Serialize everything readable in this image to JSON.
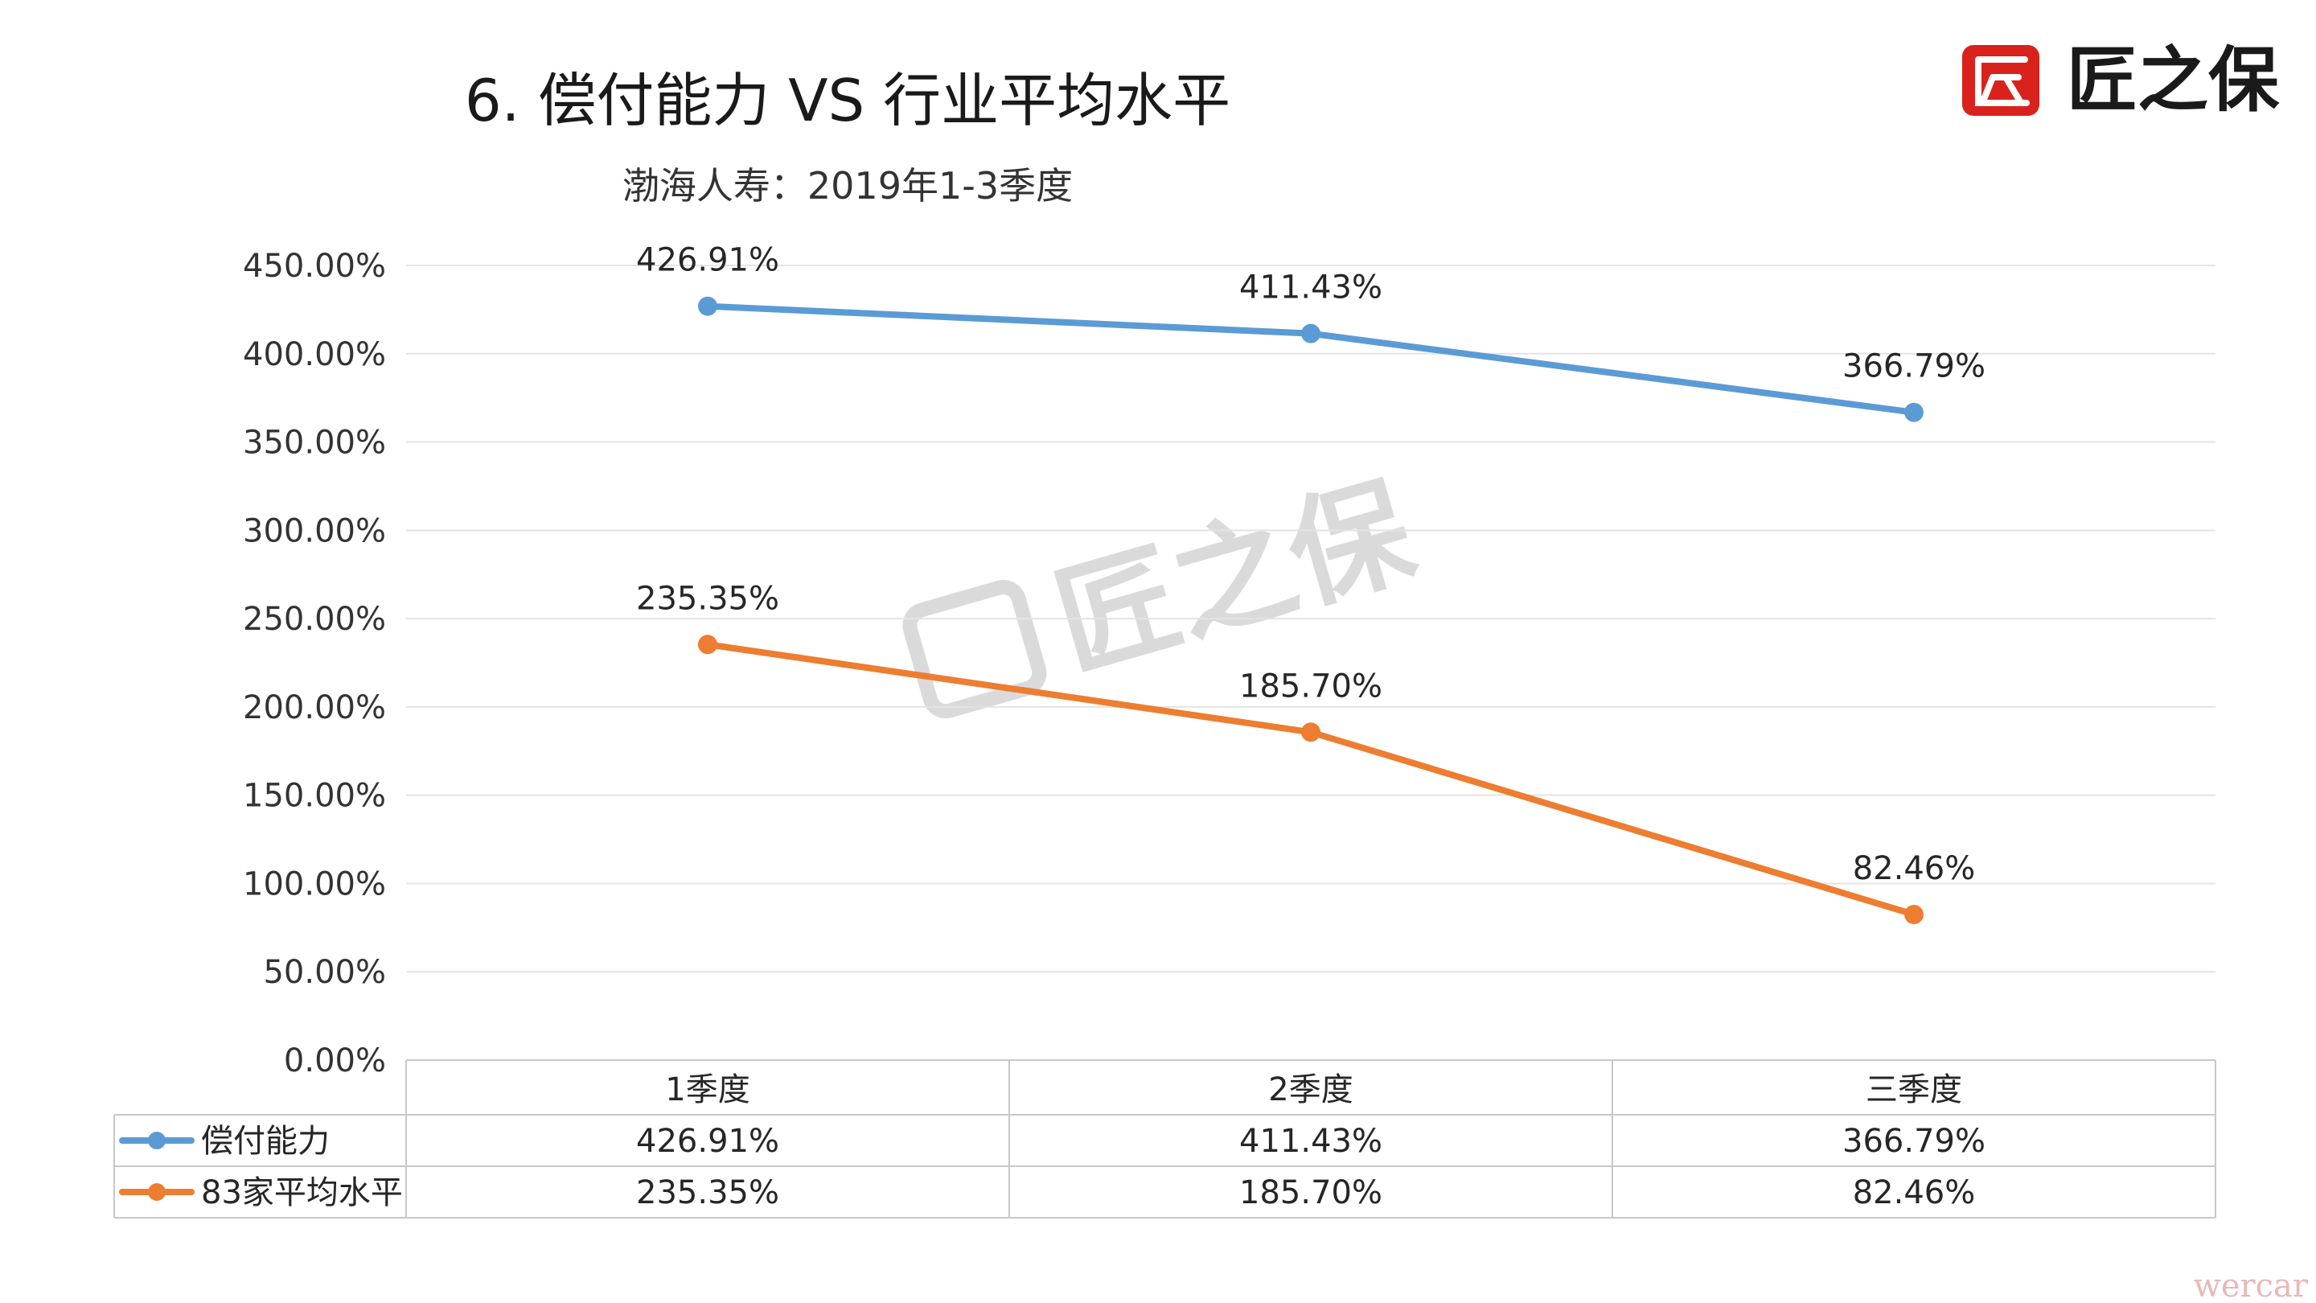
{
  "chart_title": "6.  偿付能力  VS  行业平均水平",
  "chart_subtitle": "渤海人寿：2019年1-3季度",
  "brand": {
    "name": "匠之保",
    "mark_color": "#d9221c"
  },
  "watermark": "匠之保",
  "footer_mark": "wercar",
  "chart_data": {
    "type": "line",
    "categories": [
      "1季度",
      "2季度",
      "三季度"
    ],
    "series": [
      {
        "name": "偿付能力",
        "values": [
          426.91,
          411.43,
          366.79
        ],
        "labels": [
          "426.91%",
          "411.43%",
          "366.79%"
        ],
        "color": "#5b9bd5"
      },
      {
        "name": "83家平均水平",
        "values": [
          235.35,
          185.7,
          82.46
        ],
        "labels": [
          "235.35%",
          "185.70%",
          "82.46%"
        ],
        "color": "#ed7d31"
      }
    ],
    "ylim": [
      0,
      450
    ],
    "yticks": [
      "0.00%",
      "50.00%",
      "100.00%",
      "150.00%",
      "200.00%",
      "250.00%",
      "300.00%",
      "350.00%",
      "400.00%",
      "450.00%"
    ],
    "grid": true,
    "data_table": true
  }
}
